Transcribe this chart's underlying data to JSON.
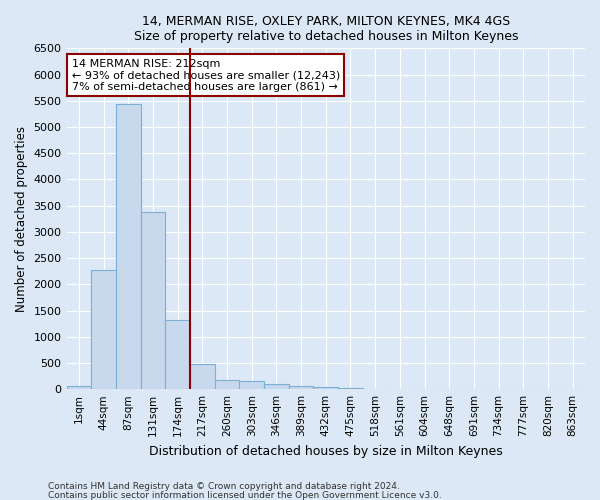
{
  "title1": "14, MERMAN RISE, OXLEY PARK, MILTON KEYNES, MK4 4GS",
  "title2": "Size of property relative to detached houses in Milton Keynes",
  "xlabel": "Distribution of detached houses by size in Milton Keynes",
  "ylabel": "Number of detached properties",
  "bar_color": "#c8d9ee",
  "bar_edge_color": "#7bafd4",
  "categories": [
    "1sqm",
    "44sqm",
    "87sqm",
    "131sqm",
    "174sqm",
    "217sqm",
    "260sqm",
    "303sqm",
    "346sqm",
    "389sqm",
    "432sqm",
    "475sqm",
    "518sqm",
    "561sqm",
    "604sqm",
    "648sqm",
    "691sqm",
    "734sqm",
    "777sqm",
    "820sqm",
    "863sqm"
  ],
  "values": [
    60,
    2280,
    5430,
    3380,
    1310,
    480,
    170,
    150,
    90,
    60,
    40,
    20,
    10,
    5,
    5,
    5,
    5,
    5,
    5,
    5,
    5
  ],
  "vline_x_idx": 5,
  "vline_color": "#8b0000",
  "annotation_text": "14 MERMAN RISE: 212sqm\n← 93% of detached houses are smaller (12,243)\n7% of semi-detached houses are larger (861) →",
  "annotation_box_color": "#8b0000",
  "ylim": [
    0,
    6500
  ],
  "yticks": [
    0,
    500,
    1000,
    1500,
    2000,
    2500,
    3000,
    3500,
    4000,
    4500,
    5000,
    5500,
    6000,
    6500
  ],
  "footnote1": "Contains HM Land Registry data © Crown copyright and database right 2024.",
  "footnote2": "Contains public sector information licensed under the Open Government Licence v3.0.",
  "bg_color": "#dce8f5",
  "plot_bg_color": "#dce8f5",
  "grid_color": "#ffffff",
  "title1_fontsize": 9,
  "title2_fontsize": 9
}
